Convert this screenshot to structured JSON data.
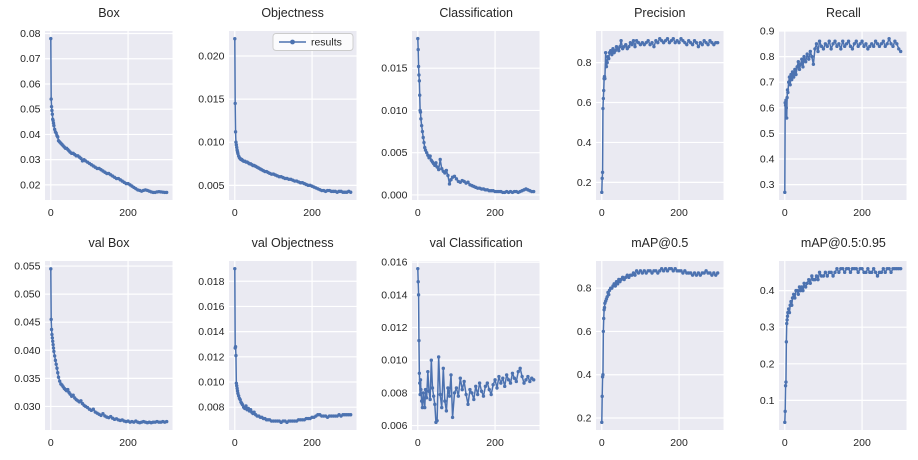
{
  "figure": {
    "legend_label": "results",
    "line_color": "#4c72b0",
    "panel_bg": "#eaeaf2",
    "grid_color": "#ffffff",
    "text_color": "#262626",
    "xlim": [
      -15,
      315
    ],
    "xticks": [
      0,
      200
    ],
    "xtick_labels": [
      "0",
      "200"
    ],
    "x": [
      0,
      1,
      2,
      3,
      4,
      5,
      6,
      7,
      8,
      10,
      12,
      14,
      16,
      18,
      20,
      23,
      26,
      29,
      32,
      35,
      38,
      41,
      44,
      47,
      50,
      54,
      58,
      62,
      66,
      70,
      74,
      78,
      82,
      86,
      90,
      95,
      100,
      105,
      110,
      115,
      120,
      125,
      130,
      135,
      140,
      145,
      150,
      155,
      160,
      165,
      170,
      175,
      180,
      185,
      190,
      195,
      200,
      205,
      210,
      215,
      220,
      225,
      230,
      235,
      240,
      245,
      250,
      255,
      260,
      265,
      270,
      275,
      280,
      285,
      290,
      295,
      300
    ]
  },
  "chart_data": [
    {
      "type": "line",
      "title": "Box",
      "xlabel": "",
      "ylabel": "",
      "legend": false,
      "ylim": [
        0.014,
        0.081
      ],
      "ytick_values": [
        0.02,
        0.03,
        0.04,
        0.05,
        0.06,
        0.07,
        0.08
      ],
      "ytick_labels": [
        "0.02",
        "0.03",
        "0.04",
        "0.05",
        "0.06",
        "0.07",
        "0.08"
      ],
      "values": [
        0.078,
        0.054,
        0.051,
        0.0495,
        0.048,
        0.046,
        0.0455,
        0.0445,
        0.0435,
        0.042,
        0.041,
        0.0405,
        0.0395,
        0.039,
        0.0375,
        0.037,
        0.0365,
        0.036,
        0.0355,
        0.035,
        0.0345,
        0.0345,
        0.034,
        0.0335,
        0.033,
        0.0325,
        0.0325,
        0.032,
        0.0315,
        0.0315,
        0.031,
        0.0305,
        0.0295,
        0.03,
        0.0295,
        0.029,
        0.0285,
        0.028,
        0.0275,
        0.027,
        0.0265,
        0.0265,
        0.026,
        0.0255,
        0.025,
        0.0245,
        0.0245,
        0.024,
        0.0235,
        0.023,
        0.0225,
        0.0225,
        0.022,
        0.0215,
        0.021,
        0.0205,
        0.0205,
        0.02,
        0.0195,
        0.019,
        0.0185,
        0.018,
        0.0178,
        0.0175,
        0.0178,
        0.018,
        0.0178,
        0.0175,
        0.0172,
        0.017,
        0.017,
        0.0172,
        0.0173,
        0.0172,
        0.0171,
        0.017,
        0.017
      ]
    },
    {
      "type": "line",
      "title": "Objectness",
      "xlabel": "",
      "ylabel": "",
      "legend": true,
      "ylim": [
        0.0033,
        0.0229
      ],
      "ytick_values": [
        0.005,
        0.01,
        0.015,
        0.02
      ],
      "ytick_labels": [
        "0.005",
        "0.010",
        "0.015",
        "0.020"
      ],
      "values": [
        0.022,
        0.0145,
        0.0112,
        0.01,
        0.0097,
        0.0094,
        0.0091,
        0.0089,
        0.0087,
        0.0084,
        0.0082,
        0.0081,
        0.008,
        0.008,
        0.0079,
        0.0078,
        0.0078,
        0.0077,
        0.0077,
        0.0076,
        0.0075,
        0.0075,
        0.0074,
        0.0073,
        0.0073,
        0.0072,
        0.0071,
        0.007,
        0.0069,
        0.0068,
        0.0067,
        0.0066,
        0.0066,
        0.0065,
        0.0064,
        0.0063,
        0.0063,
        0.0062,
        0.0061,
        0.006,
        0.006,
        0.0059,
        0.0058,
        0.0058,
        0.0057,
        0.0057,
        0.0056,
        0.0055,
        0.0055,
        0.0054,
        0.0053,
        0.0053,
        0.0052,
        0.0051,
        0.005,
        0.005,
        0.0049,
        0.0048,
        0.0047,
        0.0046,
        0.0045,
        0.0044,
        0.0044,
        0.0043,
        0.0044,
        0.0044,
        0.0043,
        0.0043,
        0.0043,
        0.0042,
        0.0043,
        0.0043,
        0.0042,
        0.0042,
        0.0042,
        0.0043,
        0.0042
      ]
    },
    {
      "type": "line",
      "title": "Classification",
      "xlabel": "",
      "ylabel": "",
      "legend": false,
      "ylim": [
        -0.0006,
        0.0194
      ],
      "ytick_values": [
        0.0,
        0.005,
        0.01,
        0.015
      ],
      "ytick_labels": [
        "0.000",
        "0.005",
        "0.010",
        "0.015"
      ],
      "values": [
        0.0185,
        0.0172,
        0.0152,
        0.0142,
        0.0135,
        0.0118,
        0.01,
        0.0098,
        0.009,
        0.0082,
        0.0075,
        0.0068,
        0.0062,
        0.0056,
        0.0053,
        0.005,
        0.0047,
        0.0044,
        0.0046,
        0.0041,
        0.0039,
        0.0037,
        0.0035,
        0.0038,
        0.0033,
        0.003,
        0.0042,
        0.0031,
        0.0028,
        0.0026,
        0.0029,
        0.0023,
        0.0013,
        0.0018,
        0.0021,
        0.0022,
        0.0019,
        0.0016,
        0.0015,
        0.0017,
        0.0016,
        0.0014,
        0.0015,
        0.0012,
        0.0011,
        0.001,
        0.0009,
        0.0008,
        0.0008,
        0.0007,
        0.0007,
        0.0006,
        0.0006,
        0.0005,
        0.0005,
        0.0005,
        0.0004,
        0.0004,
        0.0004,
        0.0004,
        0.0003,
        0.0003,
        0.0004,
        0.0003,
        0.0004,
        0.0003,
        0.0004,
        0.0004,
        0.0003,
        0.0004,
        0.0005,
        0.0006,
        0.0007,
        0.0006,
        0.0005,
        0.0004,
        0.0004
      ]
    },
    {
      "type": "line",
      "title": "Precision",
      "xlabel": "",
      "ylabel": "",
      "legend": false,
      "ylim": [
        0.1115,
        0.9585
      ],
      "ytick_values": [
        0.2,
        0.4,
        0.6,
        0.8
      ],
      "ytick_labels": [
        "0.2",
        "0.4",
        "0.6",
        "0.8"
      ],
      "values": [
        0.15,
        0.22,
        0.25,
        0.57,
        0.62,
        0.66,
        0.72,
        0.73,
        0.72,
        0.85,
        0.78,
        0.8,
        0.83,
        0.82,
        0.85,
        0.86,
        0.84,
        0.87,
        0.85,
        0.86,
        0.88,
        0.87,
        0.86,
        0.88,
        0.91,
        0.87,
        0.88,
        0.89,
        0.87,
        0.88,
        0.9,
        0.89,
        0.91,
        0.88,
        0.91,
        0.9,
        0.89,
        0.9,
        0.89,
        0.9,
        0.91,
        0.89,
        0.9,
        0.88,
        0.91,
        0.9,
        0.92,
        0.91,
        0.9,
        0.91,
        0.92,
        0.9,
        0.91,
        0.92,
        0.9,
        0.91,
        0.9,
        0.92,
        0.91,
        0.9,
        0.89,
        0.91,
        0.9,
        0.89,
        0.91,
        0.9,
        0.88,
        0.9,
        0.89,
        0.91,
        0.9,
        0.89,
        0.91,
        0.9,
        0.89,
        0.9,
        0.9
      ]
    },
    {
      "type": "line",
      "title": "Recall",
      "xlabel": "",
      "ylabel": "",
      "legend": false,
      "ylim": [
        0.24,
        0.9
      ],
      "ytick_values": [
        0.3,
        0.4,
        0.5,
        0.6,
        0.7,
        0.8,
        0.9
      ],
      "ytick_labels": [
        "0.3",
        "0.4",
        "0.5",
        "0.6",
        "0.7",
        "0.8",
        "0.9"
      ],
      "values": [
        0.27,
        0.62,
        0.61,
        0.63,
        0.6,
        0.56,
        0.64,
        0.67,
        0.66,
        0.7,
        0.72,
        0.69,
        0.73,
        0.71,
        0.74,
        0.72,
        0.75,
        0.73,
        0.76,
        0.78,
        0.75,
        0.77,
        0.79,
        0.76,
        0.8,
        0.78,
        0.81,
        0.79,
        0.82,
        0.8,
        0.77,
        0.83,
        0.85,
        0.82,
        0.86,
        0.84,
        0.83,
        0.85,
        0.84,
        0.86,
        0.83,
        0.85,
        0.86,
        0.84,
        0.85,
        0.83,
        0.86,
        0.84,
        0.85,
        0.86,
        0.84,
        0.83,
        0.85,
        0.86,
        0.84,
        0.85,
        0.86,
        0.84,
        0.85,
        0.83,
        0.84,
        0.85,
        0.84,
        0.86,
        0.85,
        0.84,
        0.85,
        0.86,
        0.84,
        0.85,
        0.87,
        0.85,
        0.84,
        0.86,
        0.85,
        0.83,
        0.82
      ]
    },
    {
      "type": "line",
      "title": "val Box",
      "xlabel": "",
      "ylabel": "",
      "legend": false,
      "ylim": [
        0.0258,
        0.0559
      ],
      "ytick_values": [
        0.03,
        0.035,
        0.04,
        0.045,
        0.05,
        0.055
      ],
      "ytick_labels": [
        "0.030",
        "0.035",
        "0.040",
        "0.045",
        "0.050",
        "0.055"
      ],
      "values": [
        0.0545,
        0.0455,
        0.0437,
        0.0428,
        0.0422,
        0.0416,
        0.041,
        0.0404,
        0.0398,
        0.039,
        0.0382,
        0.0375,
        0.0368,
        0.036,
        0.0352,
        0.0345,
        0.034,
        0.0338,
        0.0335,
        0.0332,
        0.033,
        0.0328,
        0.033,
        0.0325,
        0.0322,
        0.0318,
        0.032,
        0.0315,
        0.0312,
        0.031,
        0.0308,
        0.031,
        0.0305,
        0.0302,
        0.03,
        0.0298,
        0.0295,
        0.0293,
        0.0295,
        0.029,
        0.0288,
        0.0286,
        0.0284,
        0.0287,
        0.0283,
        0.0281,
        0.028,
        0.0282,
        0.0279,
        0.0277,
        0.0278,
        0.0276,
        0.0275,
        0.0276,
        0.0274,
        0.0273,
        0.0274,
        0.0272,
        0.0273,
        0.0272,
        0.0274,
        0.0272,
        0.0271,
        0.0272,
        0.0273,
        0.0272,
        0.0271,
        0.0272,
        0.0271,
        0.0272,
        0.0272,
        0.0273,
        0.0272,
        0.0272,
        0.0273,
        0.0272,
        0.0273
      ]
    },
    {
      "type": "line",
      "title": "val Objectness",
      "xlabel": "",
      "ylabel": "",
      "legend": false,
      "ylim": [
        0.00619,
        0.01961
      ],
      "ytick_values": [
        0.008,
        0.01,
        0.012,
        0.014,
        0.016,
        0.018
      ],
      "ytick_labels": [
        "0.008",
        "0.010",
        "0.012",
        "0.014",
        "0.016",
        "0.018"
      ],
      "values": [
        0.019,
        0.0127,
        0.0128,
        0.0121,
        0.0099,
        0.0097,
        0.0095,
        0.0093,
        0.0091,
        0.0089,
        0.0087,
        0.0086,
        0.0084,
        0.0083,
        0.0082,
        0.008,
        0.0079,
        0.0081,
        0.0078,
        0.0079,
        0.0077,
        0.0078,
        0.0076,
        0.0075,
        0.0076,
        0.0074,
        0.0073,
        0.0073,
        0.0072,
        0.0072,
        0.0071,
        0.0071,
        0.007,
        0.007,
        0.007,
        0.0069,
        0.0069,
        0.0069,
        0.0069,
        0.0069,
        0.0068,
        0.0069,
        0.0069,
        0.0068,
        0.0069,
        0.0069,
        0.0069,
        0.0069,
        0.0069,
        0.007,
        0.007,
        0.007,
        0.007,
        0.0071,
        0.0071,
        0.0071,
        0.0072,
        0.0072,
        0.0073,
        0.0074,
        0.0074,
        0.0073,
        0.0073,
        0.0073,
        0.0072,
        0.0073,
        0.0073,
        0.0073,
        0.0073,
        0.0073,
        0.0074,
        0.0073,
        0.0074,
        0.0074,
        0.0074,
        0.0074,
        0.0074
      ]
    },
    {
      "type": "line",
      "title": "val Classification",
      "xlabel": "",
      "ylabel": "",
      "legend": false,
      "ylim": [
        0.00573,
        0.01607
      ],
      "ytick_values": [
        0.006,
        0.008,
        0.01,
        0.012,
        0.014,
        0.016
      ],
      "ytick_labels": [
        "0.006",
        "0.008",
        "0.010",
        "0.012",
        "0.014",
        "0.016"
      ],
      "values": [
        0.0156,
        0.0148,
        0.014,
        0.0112,
        0.0092,
        0.0086,
        0.0079,
        0.0088,
        0.0082,
        0.0075,
        0.0071,
        0.008,
        0.0076,
        0.0071,
        0.0082,
        0.0077,
        0.0093,
        0.0081,
        0.0076,
        0.01,
        0.0083,
        0.0078,
        0.0073,
        0.0062,
        0.0063,
        0.0102,
        0.0079,
        0.0071,
        0.0095,
        0.0075,
        0.0069,
        0.0083,
        0.0078,
        0.0091,
        0.0065,
        0.008,
        0.0083,
        0.0078,
        0.0089,
        0.0082,
        0.0087,
        0.0079,
        0.0073,
        0.0082,
        0.008,
        0.0076,
        0.0084,
        0.0079,
        0.0086,
        0.0081,
        0.0078,
        0.0084,
        0.0086,
        0.0082,
        0.0079,
        0.0085,
        0.0088,
        0.0083,
        0.009,
        0.0086,
        0.0089,
        0.0084,
        0.0091,
        0.0088,
        0.0086,
        0.0092,
        0.0089,
        0.0087,
        0.0093,
        0.0095,
        0.009,
        0.0086,
        0.0088,
        0.009,
        0.0087,
        0.0089,
        0.0088
      ]
    },
    {
      "type": "line",
      "title": "mAP@0.5",
      "xlabel": "",
      "ylabel": "",
      "legend": false,
      "ylim": [
        0.1445,
        0.9255
      ],
      "ytick_values": [
        0.2,
        0.4,
        0.6,
        0.8
      ],
      "ytick_labels": [
        "0.2",
        "0.4",
        "0.6",
        "0.8"
      ],
      "values": [
        0.18,
        0.3,
        0.39,
        0.4,
        0.6,
        0.66,
        0.7,
        0.71,
        0.73,
        0.74,
        0.75,
        0.76,
        0.78,
        0.77,
        0.79,
        0.8,
        0.8,
        0.81,
        0.82,
        0.81,
        0.83,
        0.82,
        0.84,
        0.83,
        0.84,
        0.85,
        0.84,
        0.85,
        0.86,
        0.85,
        0.86,
        0.86,
        0.87,
        0.86,
        0.88,
        0.87,
        0.88,
        0.87,
        0.88,
        0.87,
        0.88,
        0.88,
        0.87,
        0.88,
        0.88,
        0.87,
        0.88,
        0.89,
        0.88,
        0.89,
        0.88,
        0.89,
        0.89,
        0.88,
        0.89,
        0.88,
        0.88,
        0.88,
        0.87,
        0.88,
        0.87,
        0.87,
        0.87,
        0.86,
        0.87,
        0.86,
        0.87,
        0.86,
        0.87,
        0.87,
        0.88,
        0.87,
        0.87,
        0.86,
        0.87,
        0.86,
        0.87
      ]
    },
    {
      "type": "line",
      "title": "mAP@0.5:0.95",
      "xlabel": "",
      "ylabel": "",
      "legend": false,
      "ylim": [
        0.019,
        0.481
      ],
      "ytick_values": [
        0.1,
        0.2,
        0.3,
        0.4
      ],
      "ytick_labels": [
        "0.1",
        "0.2",
        "0.3",
        "0.4"
      ],
      "values": [
        0.04,
        0.07,
        0.14,
        0.15,
        0.26,
        0.31,
        0.32,
        0.33,
        0.34,
        0.35,
        0.34,
        0.36,
        0.37,
        0.36,
        0.38,
        0.39,
        0.38,
        0.4,
        0.4,
        0.39,
        0.41,
        0.4,
        0.41,
        0.4,
        0.42,
        0.41,
        0.42,
        0.43,
        0.42,
        0.44,
        0.43,
        0.43,
        0.44,
        0.43,
        0.45,
        0.44,
        0.44,
        0.45,
        0.44,
        0.45,
        0.45,
        0.44,
        0.45,
        0.46,
        0.45,
        0.46,
        0.46,
        0.45,
        0.46,
        0.46,
        0.45,
        0.46,
        0.46,
        0.46,
        0.45,
        0.46,
        0.46,
        0.45,
        0.45,
        0.46,
        0.45,
        0.45,
        0.46,
        0.45,
        0.44,
        0.45,
        0.45,
        0.46,
        0.45,
        0.46,
        0.46,
        0.45,
        0.46,
        0.46,
        0.46,
        0.46,
        0.46
      ]
    }
  ]
}
